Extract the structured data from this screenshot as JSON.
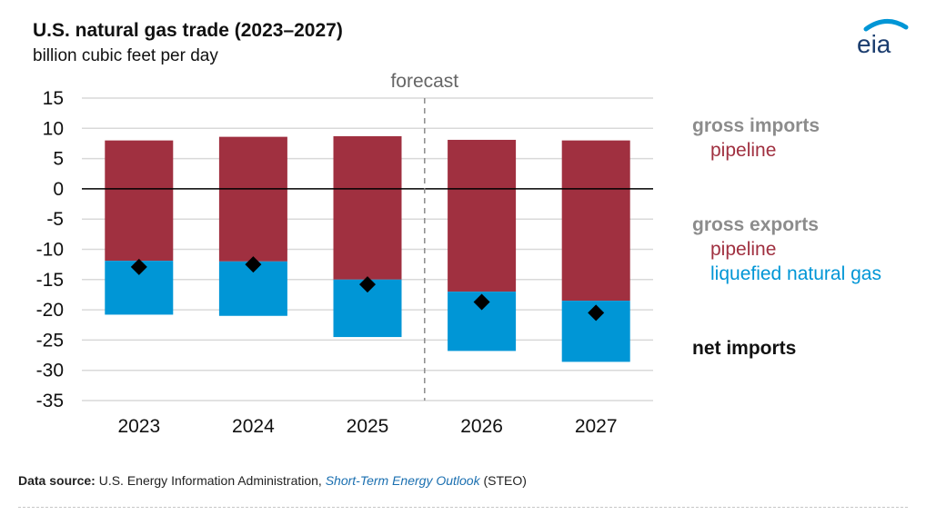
{
  "title": "U.S. natural gas trade (2023–2027)",
  "subtitle": "billion cubic feet per day",
  "logo_text": "eia",
  "colors": {
    "pipeline": "#a03040",
    "lng": "#0096d6",
    "legend_gray": "#8c8c8c",
    "marker": "#000000",
    "grid": "#d9d9d9"
  },
  "legend": {
    "gross_imports": "gross imports",
    "imports_pipeline": "pipeline",
    "gross_exports": "gross exports",
    "exports_pipeline": "pipeline",
    "exports_lng": "liquefied natural gas",
    "net_imports": "net imports"
  },
  "source": {
    "label": "Data source:",
    "text1": "U.S. Energy Information Administration,",
    "link": "Short-Term Energy Outlook",
    "text2": "(STEO)"
  },
  "chart_data": {
    "type": "bar",
    "stacked": true,
    "title": "U.S. natural gas trade (2023–2027)",
    "ylabel": "billion cubic feet per day",
    "categories": [
      "2023",
      "2024",
      "2025",
      "2026",
      "2027"
    ],
    "ylim": [
      -35,
      15
    ],
    "yticks": [
      15,
      10,
      5,
      0,
      -5,
      -10,
      -15,
      -20,
      -25,
      -30,
      -35
    ],
    "grid": true,
    "forecast_label": "forecast",
    "forecast_divider_after": "2025",
    "series": [
      {
        "name": "gross imports pipeline",
        "values": [
          8.0,
          8.6,
          8.7,
          8.1,
          8.0
        ]
      },
      {
        "name": "gross exports pipeline",
        "values": [
          -11.9,
          -12.0,
          -15.0,
          -17.0,
          -18.5
        ]
      },
      {
        "name": "gross exports liquefied natural gas",
        "values": [
          -8.9,
          -9.0,
          -9.5,
          -9.8,
          -10.1
        ]
      }
    ],
    "markers": {
      "name": "net imports",
      "values": [
        -12.9,
        -12.5,
        -15.8,
        -18.7,
        -20.5
      ]
    }
  }
}
